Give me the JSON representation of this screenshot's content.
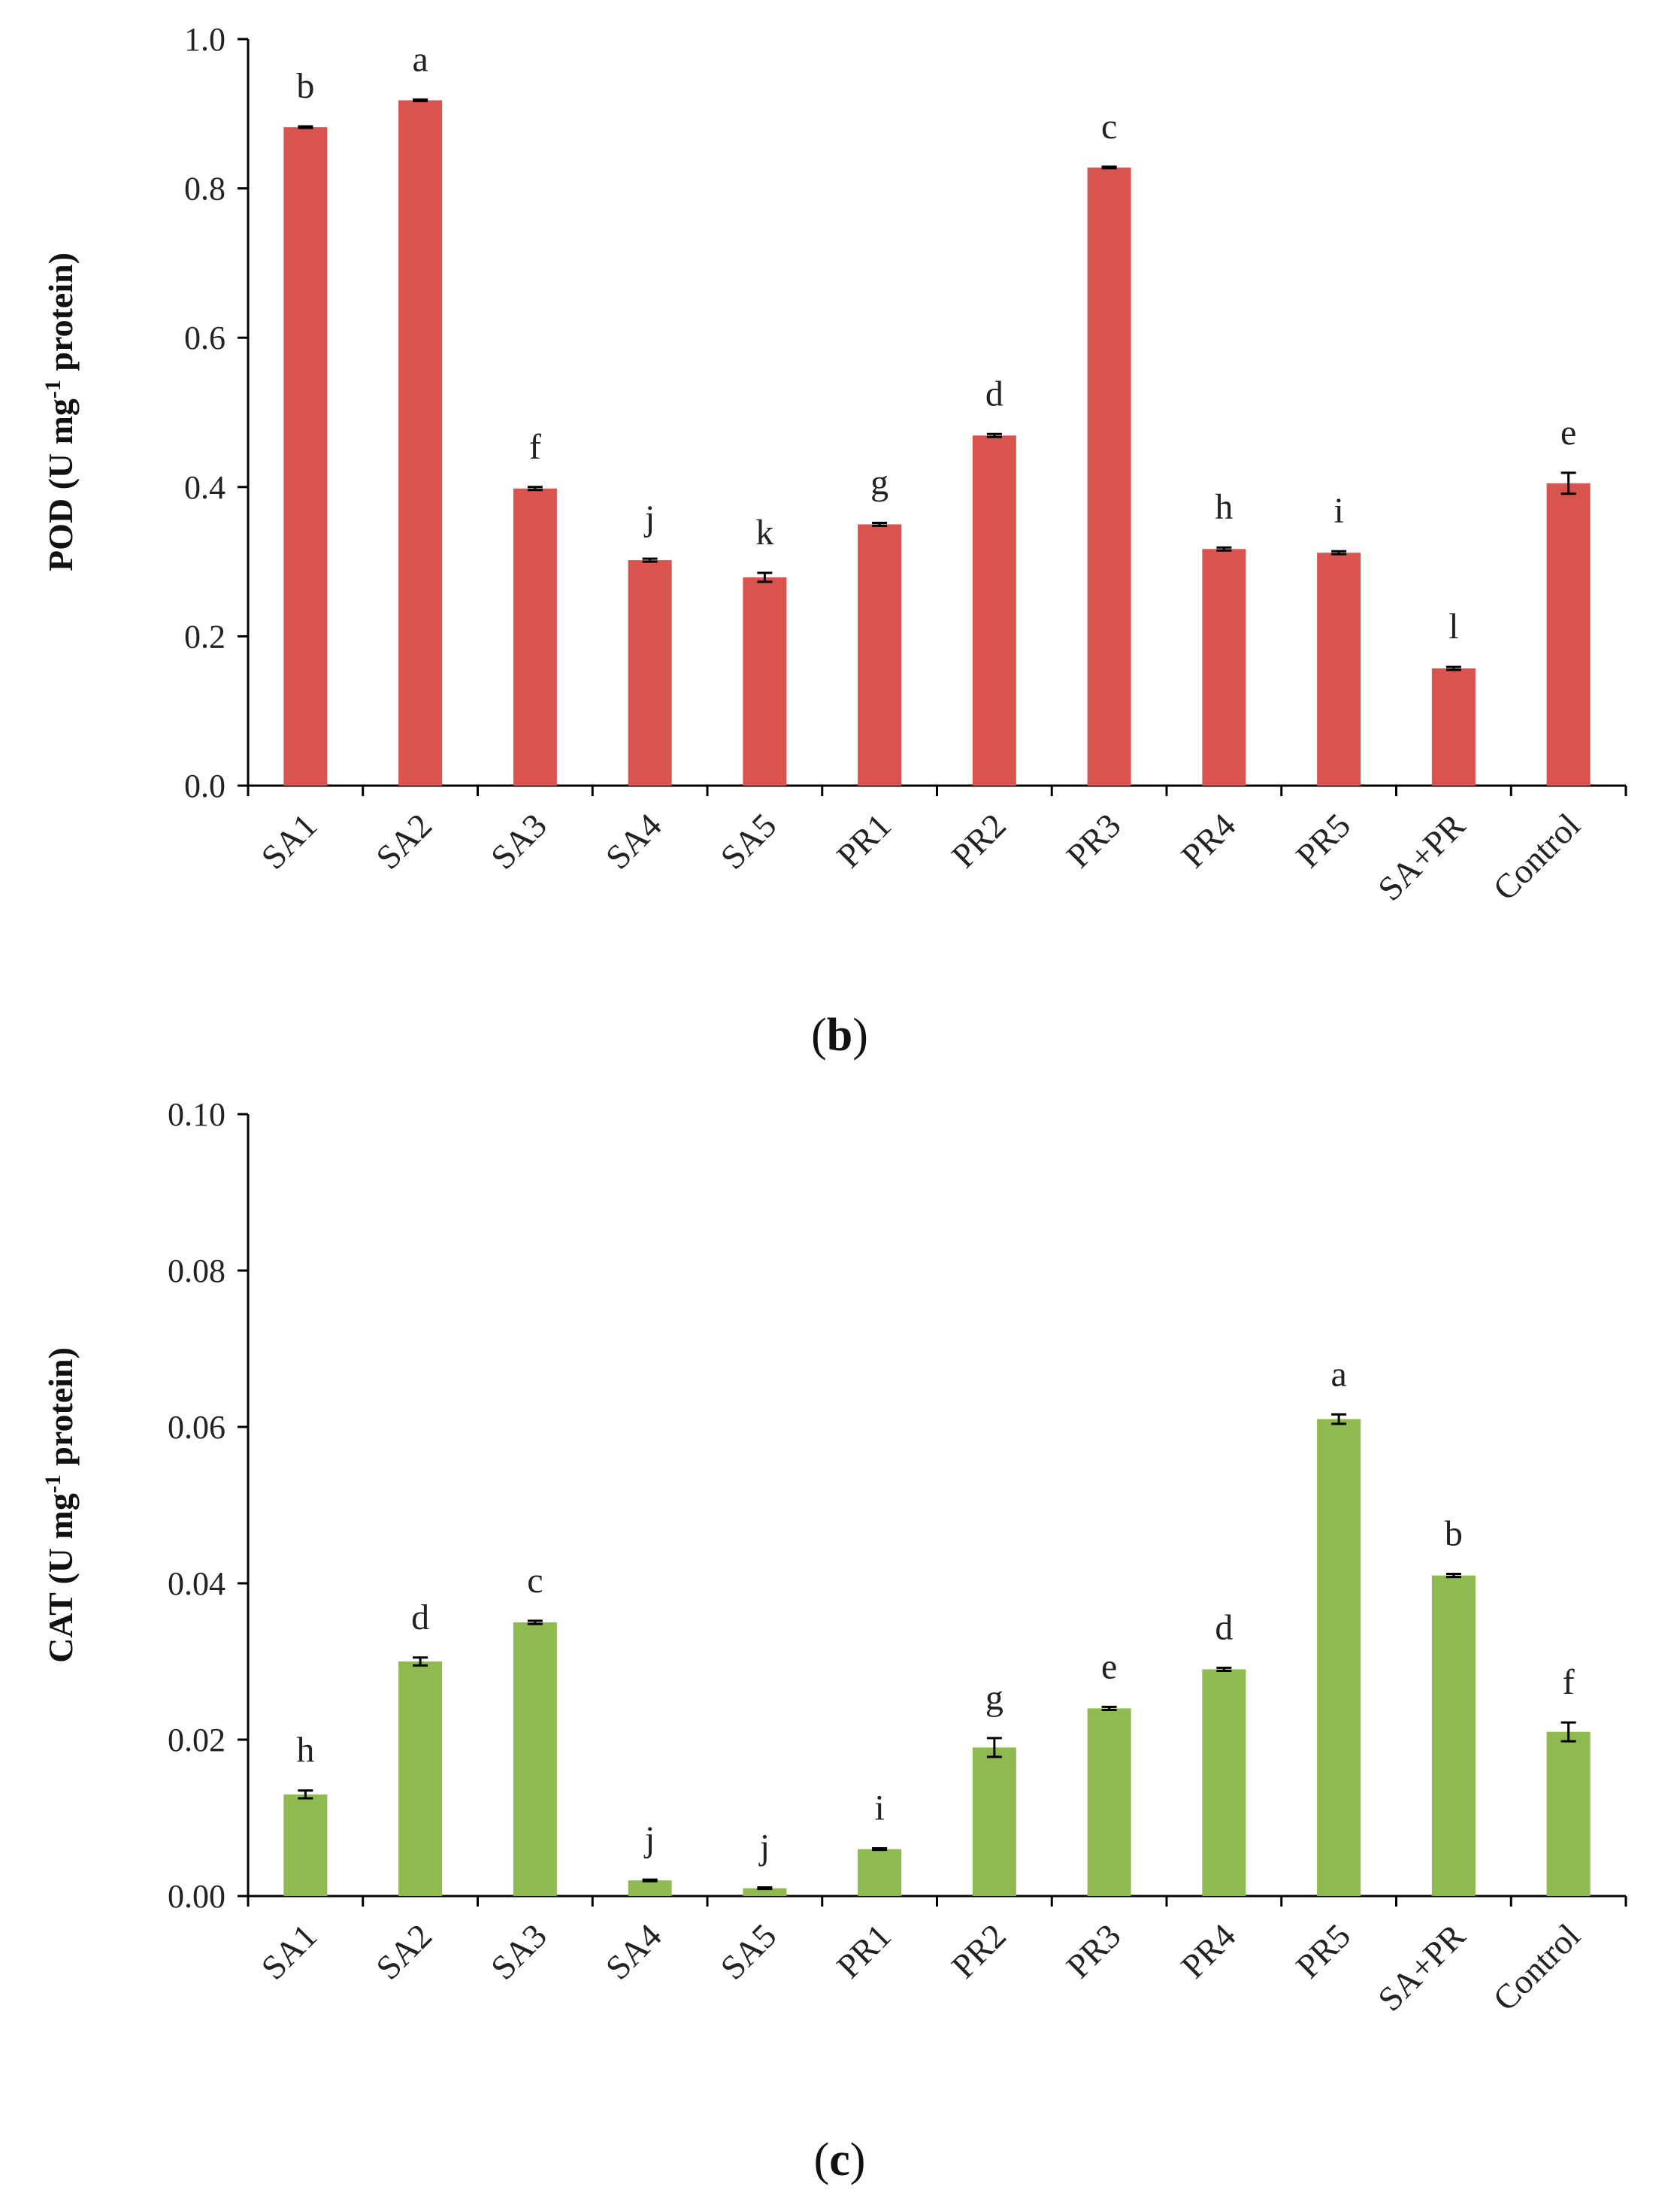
{
  "chart_data": [
    {
      "type": "bar",
      "panel": "b",
      "ylabel_main": "POD (U mg",
      "ylabel_sup": "-1",
      "ylabel_tail": " protein)",
      "ylim": [
        0,
        1.0
      ],
      "yticks": [
        "0.0",
        "0.2",
        "0.4",
        "0.6",
        "0.8",
        "1.0"
      ],
      "ytick_values": [
        0,
        0.2,
        0.4,
        0.6,
        0.8,
        1.0
      ],
      "color": "#d9534f",
      "categories": [
        "SA1",
        "SA2",
        "SA3",
        "SA4",
        "SA5",
        "PR1",
        "PR2",
        "PR3",
        "PR4",
        "PR5",
        "SA+PR",
        "Control"
      ],
      "values": [
        0.882,
        0.918,
        0.398,
        0.302,
        0.279,
        0.35,
        0.469,
        0.828,
        0.317,
        0.312,
        0.157,
        0.405
      ],
      "errors": [
        0.001,
        0.001,
        0.002,
        0.002,
        0.006,
        0.002,
        0.002,
        0.001,
        0.002,
        0.002,
        0.002,
        0.014
      ],
      "letters": [
        "b",
        "a",
        "f",
        "j",
        "k",
        "g",
        "d",
        "c",
        "h",
        "i",
        "l",
        "e"
      ]
    },
    {
      "type": "bar",
      "panel": "c",
      "ylabel_main": "CAT (U mg",
      "ylabel_sup": "-1",
      "ylabel_tail": " protein)",
      "ylim": [
        0,
        0.1
      ],
      "yticks": [
        "0.00",
        "0.02",
        "0.04",
        "0.06",
        "0.08",
        "0.10"
      ],
      "ytick_values": [
        0,
        0.02,
        0.04,
        0.06,
        0.08,
        0.1
      ],
      "color": "#8fba4f",
      "categories": [
        "SA1",
        "SA2",
        "SA3",
        "SA4",
        "SA5",
        "PR1",
        "PR2",
        "PR3",
        "PR4",
        "PR5",
        "SA+PR",
        "Control"
      ],
      "values": [
        0.013,
        0.03,
        0.035,
        0.002,
        0.001,
        0.006,
        0.019,
        0.024,
        0.029,
        0.061,
        0.041,
        0.021
      ],
      "errors": [
        0.0005,
        0.0005,
        0.0002,
        0.0001,
        0.0001,
        0.0001,
        0.0012,
        0.0002,
        0.0002,
        0.0006,
        0.0002,
        0.0012
      ],
      "letters": [
        "h",
        "d",
        "c",
        "j",
        "j",
        "i",
        "g",
        "e",
        "d",
        "a",
        "b",
        "f"
      ]
    }
  ]
}
